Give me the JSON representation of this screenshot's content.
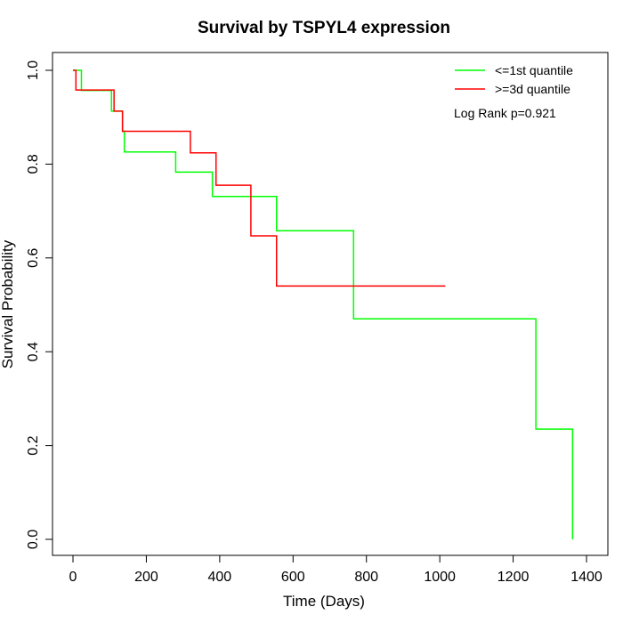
{
  "chart_data": {
    "type": "line",
    "step": true,
    "title": "Survival by TSPYL4 expression",
    "xlabel": "Time (Days)",
    "ylabel": "Survival Probability",
    "xlim": [
      0,
      1400
    ],
    "ylim": [
      0,
      1
    ],
    "x_ticks": [
      0,
      200,
      400,
      600,
      800,
      1000,
      1200,
      1400
    ],
    "y_ticks": [
      0.0,
      0.2,
      0.4,
      0.6,
      0.8,
      1.0
    ],
    "x_tick_labels": [
      "0",
      "200",
      "400",
      "600",
      "800",
      "1000",
      "1200",
      "1400"
    ],
    "y_tick_labels": [
      "0.0",
      "0.2",
      "0.4",
      "0.6",
      "0.8",
      "1.0"
    ],
    "grid": false,
    "legend_position": "top-right",
    "annotation": "Log Rank p=0.921",
    "series": [
      {
        "name": "<=1st quantile",
        "color": "#00ff00",
        "x": [
          0,
          23,
          105,
          135,
          140,
          280,
          380,
          555,
          765,
          1262,
          1362
        ],
        "y": [
          1.0,
          0.957,
          0.913,
          0.87,
          0.826,
          0.783,
          0.731,
          0.658,
          0.47,
          0.235,
          0.0
        ]
      },
      {
        "name": ">=3d quantile",
        "color": "#ff0000",
        "x": [
          0,
          8,
          112,
          135,
          320,
          390,
          485,
          555,
          1015
        ],
        "y": [
          1.0,
          0.958,
          0.913,
          0.87,
          0.824,
          0.755,
          0.647,
          0.54,
          0.54
        ]
      }
    ]
  }
}
